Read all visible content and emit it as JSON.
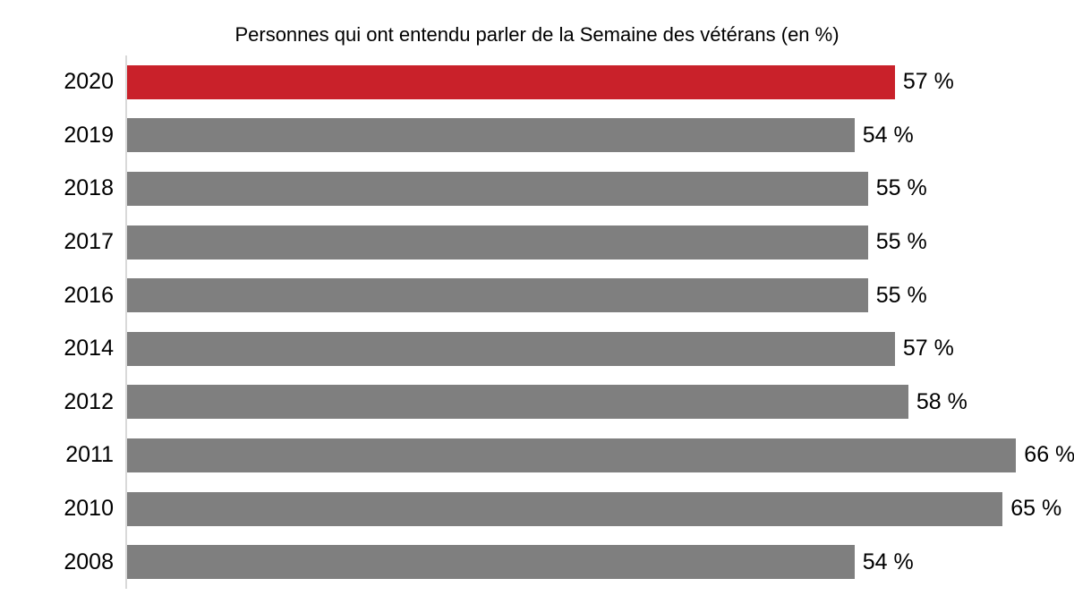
{
  "chart_data": {
    "type": "bar",
    "orientation": "horizontal",
    "title": "Personnes qui ont entendu parler de la Semaine des vétérans (en %)",
    "categories": [
      "2020",
      "2019",
      "2018",
      "2017",
      "2016",
      "2014",
      "2012",
      "2011",
      "2010",
      "2008"
    ],
    "values": [
      57,
      54,
      55,
      55,
      55,
      57,
      58,
      66,
      65,
      54
    ],
    "value_labels": [
      "57 %",
      "54 %",
      "55 %",
      "55 %",
      "55 %",
      "57 %",
      "58 %",
      "66 %",
      "65 %",
      "54 %"
    ],
    "xlabel": "",
    "ylabel": "",
    "xlim": [
      0,
      70
    ],
    "grid": false,
    "legend": "none",
    "value_labels_position": "outside-end",
    "highlight_index": 0,
    "colors": {
      "highlight_bar": "#C9212A",
      "default_bar": "#7F7F7F",
      "axis_line": "#D9D9D9",
      "text": "#000000",
      "background": "#FFFFFF"
    }
  }
}
